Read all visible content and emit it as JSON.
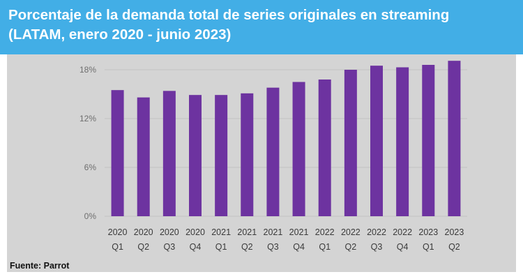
{
  "header": {
    "title_line1": "Porcentaje de la demanda total de series originales en streaming",
    "title_line2": "(LATAM, enero 2020 - junio 2023)"
  },
  "source": "Fuente: Parrot",
  "colors": {
    "header_bg": "#42aee6",
    "panel_bg": "#d4d4d4",
    "bar": "#6d33a0",
    "grid": "#c2c2c2"
  },
  "chart_data": {
    "type": "bar",
    "categories": [
      [
        "2020",
        "Q1"
      ],
      [
        "2020",
        "Q2"
      ],
      [
        "2020",
        "Q3"
      ],
      [
        "2020",
        "Q4"
      ],
      [
        "2021",
        "Q1"
      ],
      [
        "2021",
        "Q2"
      ],
      [
        "2021",
        "Q3"
      ],
      [
        "2021",
        "Q4"
      ],
      [
        "2022",
        "Q1"
      ],
      [
        "2022",
        "Q2"
      ],
      [
        "2022",
        "Q3"
      ],
      [
        "2022",
        "Q4"
      ],
      [
        "2023",
        "Q1"
      ],
      [
        "2023",
        "Q2"
      ]
    ],
    "values": [
      15.5,
      14.6,
      15.4,
      14.9,
      14.9,
      15.1,
      15.8,
      16.5,
      16.8,
      18.0,
      18.5,
      18.3,
      18.6,
      19.1
    ],
    "y_ticks": [
      "0%",
      "6%",
      "12%",
      "18%"
    ],
    "ylim": [
      0,
      20
    ],
    "grid": true,
    "xlabel": "",
    "ylabel": ""
  }
}
